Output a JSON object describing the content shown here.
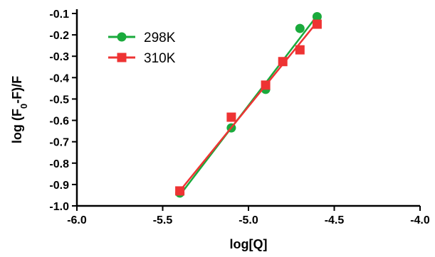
{
  "chart_data": {
    "type": "scatter",
    "title": "",
    "xlabel": "log[Q]",
    "ylabel_parts": {
      "pre": "log (F",
      "sub": "0",
      "post": "-F)/F"
    },
    "xlim": [
      -6.0,
      -4.0
    ],
    "ylim": [
      -1.0,
      -0.1
    ],
    "x_ticks": [
      "-6.0",
      "-5.5",
      "-5.0",
      "-4.5",
      "-4.0"
    ],
    "y_ticks": [
      "-0.1",
      "-0.2",
      "-0.3",
      "-0.4",
      "-0.5",
      "-0.6",
      "-0.7",
      "-0.8",
      "-0.9",
      "-1.0"
    ],
    "grid": false,
    "legend_position": "top-left",
    "series": [
      {
        "name": "298K",
        "color": "#1aaa3c",
        "marker": "circle",
        "points": [
          {
            "x": -5.4,
            "y": -0.94
          },
          {
            "x": -5.1,
            "y": -0.635
          },
          {
            "x": -4.9,
            "y": -0.455
          },
          {
            "x": -4.7,
            "y": -0.17
          },
          {
            "x": -4.6,
            "y": -0.115
          }
        ],
        "fit": [
          {
            "x": -5.4,
            "y": -0.95
          },
          {
            "x": -4.6,
            "y": -0.11
          }
        ]
      },
      {
        "name": "310K",
        "color": "#ee3333",
        "marker": "square",
        "points": [
          {
            "x": -5.4,
            "y": -0.93
          },
          {
            "x": -5.1,
            "y": -0.585
          },
          {
            "x": -4.9,
            "y": -0.435
          },
          {
            "x": -4.8,
            "y": -0.325
          },
          {
            "x": -4.7,
            "y": -0.27
          },
          {
            "x": -4.6,
            "y": -0.15
          }
        ],
        "fit": [
          {
            "x": -5.4,
            "y": -0.93
          },
          {
            "x": -4.6,
            "y": -0.14
          }
        ]
      }
    ]
  }
}
